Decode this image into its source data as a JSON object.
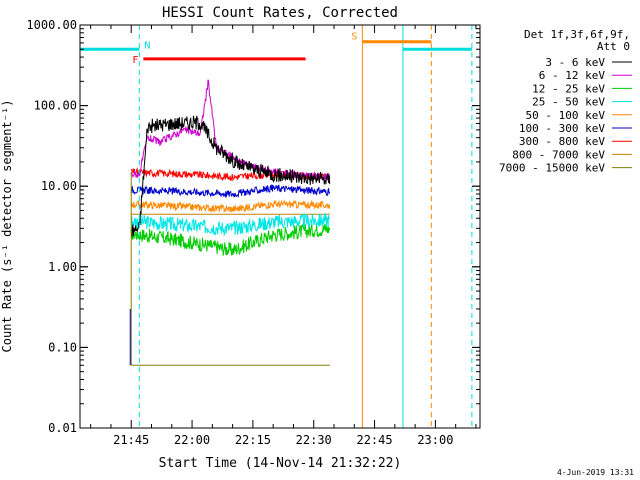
{
  "chart_data": {
    "type": "line",
    "title": "HESSI Count Rates, Corrected",
    "xlabel": "Start Time (14-Nov-14 21:32:22)",
    "ylabel": "Count Rate (s⁻¹ detector segment⁻¹)",
    "y_scale": "log",
    "ylim": [
      0.01,
      1000
    ],
    "xlim": [
      "21:32:22",
      "23:11:00"
    ],
    "x_ticks": [
      "21:45",
      "22:00",
      "22:15",
      "22:30",
      "22:45",
      "23:00"
    ],
    "y_ticks": [
      "1000.00",
      "100.00",
      "10.00",
      "1.00",
      "0.10",
      "0.01"
    ],
    "grid": false,
    "legend": {
      "position": "top-right",
      "header": [
        "Det 1f,3f,6f,9f,",
        "Att 0"
      ]
    },
    "series": [
      {
        "name": "3 - 6 keV",
        "color": "#000000",
        "x": [
          "21:45",
          "21:47",
          "21:49",
          "21:55",
          "22:02",
          "22:06",
          "22:12",
          "22:20",
          "22:26",
          "22:34"
        ],
        "values": [
          2.8,
          3.0,
          55,
          60,
          62,
          30,
          18,
          14,
          13,
          12
        ]
      },
      {
        "name": "6 - 12 keV",
        "color": "#cc00cc",
        "x": [
          "21:45",
          "21:47",
          "21:49",
          "21:52",
          "21:58",
          "22:02",
          "22:04",
          "22:06",
          "22:12",
          "22:20",
          "22:26",
          "22:34"
        ],
        "values": [
          14,
          14,
          40,
          35,
          50,
          45,
          200,
          30,
          20,
          15,
          14,
          13
        ]
      },
      {
        "name": "12 - 25 keV",
        "color": "#00cc00",
        "x": [
          "21:45",
          "21:55",
          "22:05",
          "22:10",
          "22:20",
          "22:34"
        ],
        "values": [
          2.6,
          2.2,
          1.8,
          1.6,
          2.5,
          3.0
        ]
      },
      {
        "name": "25 - 50 keV",
        "color": "#00e5e5",
        "x": [
          "21:45",
          "22:00",
          "22:10",
          "22:20",
          "22:34"
        ],
        "values": [
          3.7,
          3.2,
          3.0,
          3.6,
          3.8
        ]
      },
      {
        "name": "50 - 100 keV",
        "color": "#ff8800",
        "x": [
          "21:45",
          "22:00",
          "22:10",
          "22:20",
          "22:34"
        ],
        "values": [
          6.0,
          5.5,
          5.2,
          6.0,
          5.8
        ]
      },
      {
        "name": "100 - 300 keV",
        "color": "#0000cc",
        "x": [
          "21:45",
          "22:00",
          "22:10",
          "22:20",
          "22:34"
        ],
        "values": [
          9.0,
          8.5,
          8.0,
          9.5,
          8.5
        ]
      },
      {
        "name": "300 - 800 keV",
        "color": "#ff0000",
        "x": [
          "21:45",
          "22:00",
          "22:10",
          "22:20",
          "22:34"
        ],
        "values": [
          15,
          14,
          13,
          14,
          13
        ]
      },
      {
        "name": "800 - 7000 keV",
        "color": "#c48000",
        "x": [
          "21:45",
          "22:34"
        ],
        "values": [
          4.5,
          4.5
        ]
      },
      {
        "name": "7000 - 15000 keV",
        "color": "#808000",
        "x": [
          "21:45",
          "22:34"
        ],
        "values": [
          0.06,
          0.06
        ]
      }
    ],
    "annotations": [
      {
        "label": "N",
        "color": "#00dddd",
        "x_start": "21:32:22",
        "x_end": "21:47:00",
        "y": 500,
        "style": "bar"
      },
      {
        "label": "",
        "color": "#00dddd",
        "x_start": "22:52:00",
        "x_end": "23:09:00",
        "y": 500,
        "style": "bar"
      },
      {
        "label": "F",
        "color": "#ff0000",
        "x_start": "21:48:00",
        "x_end": "22:28:00",
        "y": 380,
        "style": "bar"
      },
      {
        "label": "S",
        "color": "#ff8800",
        "x_start": "22:42:00",
        "x_end": "22:59:00",
        "y": 620,
        "style": "bar"
      }
    ],
    "vertical_markers": [
      {
        "x": "21:32:22",
        "color": "#00dddd",
        "style": "solid"
      },
      {
        "x": "21:47:00",
        "color": "#00dddd",
        "style": "dashed"
      },
      {
        "x": "22:42:00",
        "color": "#ff8800",
        "style": "solid"
      },
      {
        "x": "22:52:00",
        "color": "#00dddd",
        "style": "solid"
      },
      {
        "x": "22:59:00",
        "color": "#ff8800",
        "style": "dashed"
      },
      {
        "x": "23:09:00",
        "color": "#00dddd",
        "style": "dashed"
      }
    ]
  },
  "footer": {
    "date_stamp": "4-Jun-2019 13:31"
  }
}
